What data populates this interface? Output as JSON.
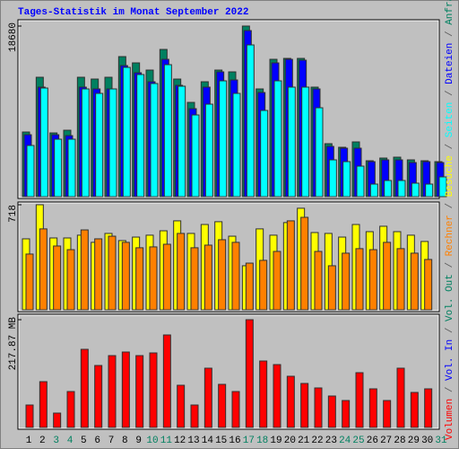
{
  "chart_data": {
    "type": "bar",
    "title": "Tages-Statistik im Monat September 2022",
    "categories": [
      "1",
      "2",
      "3",
      "4",
      "5",
      "6",
      "7",
      "8",
      "9",
      "10",
      "11",
      "12",
      "13",
      "14",
      "15",
      "16",
      "17",
      "18",
      "19",
      "20",
      "21",
      "22",
      "23",
      "24",
      "25",
      "26",
      "27",
      "28",
      "29",
      "30",
      "31"
    ],
    "highlighted_categories": [
      2,
      3,
      9,
      10,
      16,
      17,
      23,
      24,
      30
    ],
    "category_color": "#000000",
    "highlight_color": "#008060",
    "panels": [
      {
        "ylim": [
          0,
          18680
        ],
        "yticks": [
          18680
        ],
        "series": [
          {
            "name": "Anfragen",
            "color": "#008060",
            "values": [
              7078,
              13074,
              6979,
              7274,
              13074,
              12877,
              13074,
              15335,
              14647,
              13860,
              16121,
              12877,
              10322,
              12582,
              13860,
              13664,
              18680,
              11796,
              15040,
              15138,
              15138,
              11993,
              5800,
              5407,
              5996,
              3932,
              4227,
              4325,
              4030,
              3932,
              3834
            ]
          },
          {
            "name": "Dateien",
            "color": "#0000ff",
            "values": [
              6783,
              11993,
              6783,
              6684,
              11993,
              11796,
              11796,
              14352,
              13565,
              12582,
              15040,
              12189,
              9633,
              11993,
              13664,
              12779,
              18185,
              11403,
              14647,
              15040,
              14942,
              11796,
              5505,
              5308,
              5308,
              3834,
              4030,
              4030,
              3735,
              3834,
              3735
            ]
          },
          {
            "name": "Seiten",
            "color": "#00ffff",
            "values": [
              5603,
              11894,
              6291,
              6291,
              11796,
              11305,
              11796,
              14155,
              13369,
              12386,
              14450,
              12091,
              8945,
              10125,
              12681,
              11305,
              16613,
              9437,
              12681,
              11993,
              11993,
              9732,
              4030,
              3834,
              3342,
              1376,
              1769,
              1769,
              1475,
              1376,
              2163
            ]
          }
        ]
      },
      {
        "ylim": [
          0,
          718
        ],
        "yticks": [
          718
        ],
        "series": [
          {
            "name": "Besuche",
            "color": "#ffff00",
            "values": [
              485,
              718,
              491,
              491,
              510,
              461,
              522,
              473,
              497,
              510,
              540,
              608,
              522,
              583,
              602,
              503,
              301,
              553,
              510,
              596,
              694,
              528,
              522,
              497,
              583,
              534,
              571,
              534,
              510,
              467,
              null
            ]
          },
          {
            "name": "Rechner",
            "color": "#ff8000",
            "values": [
              381,
              553,
              436,
              411,
              546,
              485,
              503,
              461,
              424,
              430,
              448,
              522,
              424,
              442,
              479,
              461,
              319,
              338,
              399,
              608,
              632,
              399,
              301,
              387,
              418,
              411,
              461,
              418,
              387,
              344,
              null
            ]
          }
        ]
      },
      {
        "ylim": [
          0,
          217.87
        ],
        "yticks": [
          {
            "value": 217.87,
            "label": "217.87 MB"
          }
        ],
        "series": [
          {
            "name": "Volumen",
            "color": "#ff0000",
            "values": [
              45.39,
              92.6,
              29.05,
              72.62,
              157.96,
              125.28,
              145.25,
              152.51,
              145.25,
              150.69,
              187.01,
              85.33,
              45.39,
              119.83,
              87.15,
              72.62,
              217.87,
              134.35,
              127.09,
              103.49,
              88.96,
              79.89,
              63.55,
              54.47,
              110.75,
              78.07,
              54.47,
              119.83,
              70.81,
              78.07,
              null
            ]
          }
        ],
        "extra_legend": [
          {
            "name": "Vol. In",
            "color": "#0000ff"
          },
          {
            "name": "Vol. Out",
            "color": "#008060"
          }
        ]
      }
    ]
  }
}
